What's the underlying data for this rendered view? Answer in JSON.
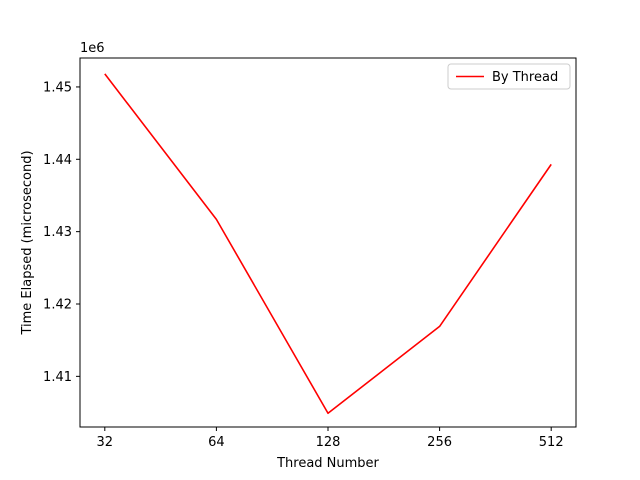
{
  "chart_data": {
    "type": "line",
    "title": "",
    "xlabel": "Thread Number",
    "ylabel": "Time Elapsed (microsecond)",
    "y_offset_label": "1e6",
    "categories": [
      "32",
      "64",
      "128",
      "256",
      "512"
    ],
    "yticks": [
      1.41,
      1.42,
      1.43,
      1.44,
      1.45
    ],
    "ylim": [
      1.403,
      1.454
    ],
    "series": [
      {
        "name": "By Thread",
        "color": "#ff0000",
        "values": [
          1.4518,
          1.4317,
          1.4049,
          1.4169,
          1.4393
        ]
      }
    ],
    "legend_position": "top-right",
    "grid": false
  }
}
